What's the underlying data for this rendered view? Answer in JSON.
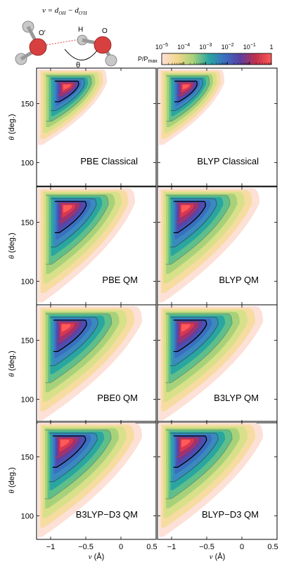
{
  "figure": {
    "equation": "ν = d_OH − d_O′H",
    "molecule_labels": {
      "o_prime": "O′",
      "h": "H",
      "o": "O",
      "theta": "θ"
    }
  },
  "colorbar": {
    "title": "P/P_max",
    "tick_labels": [
      "10^-5",
      "10^-4",
      "10^-3",
      "10^-2",
      "10^-1",
      "1"
    ],
    "tick_values": [
      1e-05,
      0.0001,
      0.001,
      0.01,
      0.1,
      1
    ],
    "scale": "log",
    "colormap": [
      "#fde0d6",
      "#f2d68c",
      "#a8d27a",
      "#2aa6a0",
      "#3a6fc0",
      "#5a3fa0",
      "#c0304a",
      "#ff5a5a"
    ]
  },
  "chart_data": [
    {
      "type": "heatmap",
      "title": "PBE Classical",
      "xlabel": "",
      "ylabel": "θ (deg.)",
      "xlim": [
        -1.2,
        0.5
      ],
      "ylim": [
        80,
        180
      ],
      "xticks": [],
      "yticks": [
        100,
        150
      ],
      "peak": {
        "x": -0.75,
        "y": 165
      },
      "contour_levels": [
        0.5,
        0.1,
        0.01,
        0.001
      ],
      "extent": {
        "ymin": 115,
        "xmax": -0.2
      }
    },
    {
      "type": "heatmap",
      "title": "BLYP Classical",
      "xlabel": "",
      "ylabel": "",
      "xlim": [
        -1.2,
        0.5
      ],
      "ylim": [
        80,
        180
      ],
      "xticks": [],
      "yticks": [],
      "peak": {
        "x": -0.78,
        "y": 165
      },
      "contour_levels": [
        0.5,
        0.1,
        0.01,
        0.001
      ],
      "extent": {
        "ymin": 115,
        "xmax": -0.25
      }
    },
    {
      "type": "heatmap",
      "title": "PBE QM",
      "xlabel": "",
      "ylabel": "θ (deg.)",
      "xlim": [
        -1.2,
        0.5
      ],
      "ylim": [
        80,
        180
      ],
      "xticks": [],
      "yticks": [
        100,
        150
      ],
      "peak": {
        "x": -0.75,
        "y": 163
      },
      "contour_levels": [
        0.5,
        0.1,
        0.01,
        0.001
      ],
      "extent": {
        "ymin": 82,
        "xmax": 0.2
      }
    },
    {
      "type": "heatmap",
      "title": "BLYP QM",
      "xlabel": "",
      "ylabel": "",
      "xlim": [
        -1.2,
        0.5
      ],
      "ylim": [
        80,
        180
      ],
      "xticks": [],
      "yticks": [],
      "peak": {
        "x": -0.8,
        "y": 163
      },
      "contour_levels": [
        0.5,
        0.1,
        0.01,
        0.001
      ],
      "extent": {
        "ymin": 82,
        "xmax": 0.25
      }
    },
    {
      "type": "heatmap",
      "title": "PBE0 QM",
      "xlabel": "",
      "ylabel": "θ (deg.)",
      "xlim": [
        -1.2,
        0.5
      ],
      "ylim": [
        80,
        180
      ],
      "xticks": [],
      "yticks": [
        100,
        150
      ],
      "peak": {
        "x": -0.78,
        "y": 162
      },
      "contour_levels": [
        0.5,
        0.1,
        0.01,
        0.001
      ],
      "extent": {
        "ymin": 82,
        "xmax": 0.3
      }
    },
    {
      "type": "heatmap",
      "title": "B3LYP QM",
      "xlabel": "",
      "ylabel": "",
      "xlim": [
        -1.2,
        0.5
      ],
      "ylim": [
        80,
        180
      ],
      "xticks": [],
      "yticks": [],
      "peak": {
        "x": -0.8,
        "y": 162
      },
      "contour_levels": [
        0.5,
        0.1,
        0.01,
        0.001
      ],
      "extent": {
        "ymin": 82,
        "xmax": 0.3
      }
    },
    {
      "type": "heatmap",
      "title": "B3LYP−D3 QM",
      "xlabel": "ν (Å)",
      "ylabel": "θ (deg.)",
      "xlim": [
        -1.2,
        0.5
      ],
      "ylim": [
        80,
        180
      ],
      "xticks": [
        -1,
        -0.5,
        0,
        0.5
      ],
      "xtick_labels": [
        "−1",
        "−0.5",
        "0",
        "0.5"
      ],
      "yticks": [
        100,
        150
      ],
      "peak": {
        "x": -0.8,
        "y": 163
      },
      "contour_levels": [
        0.5,
        0.1,
        0.01,
        0.001
      ],
      "extent": {
        "ymin": 82,
        "xmax": 0.3
      }
    },
    {
      "type": "heatmap",
      "title": "BLYP−D3 QM",
      "xlabel": "ν (Å)",
      "ylabel": "",
      "xlim": [
        -1.2,
        0.5
      ],
      "ylim": [
        80,
        180
      ],
      "xticks": [
        -1,
        -0.5,
        0,
        0.5
      ],
      "xtick_labels": [
        "−1",
        "−0.5",
        "0",
        "0.5"
      ],
      "yticks": [],
      "peak": {
        "x": -0.8,
        "y": 163
      },
      "contour_levels": [
        0.5,
        0.1,
        0.01,
        0.001
      ],
      "extent": {
        "ymin": 82,
        "xmax": 0.3
      }
    }
  ]
}
